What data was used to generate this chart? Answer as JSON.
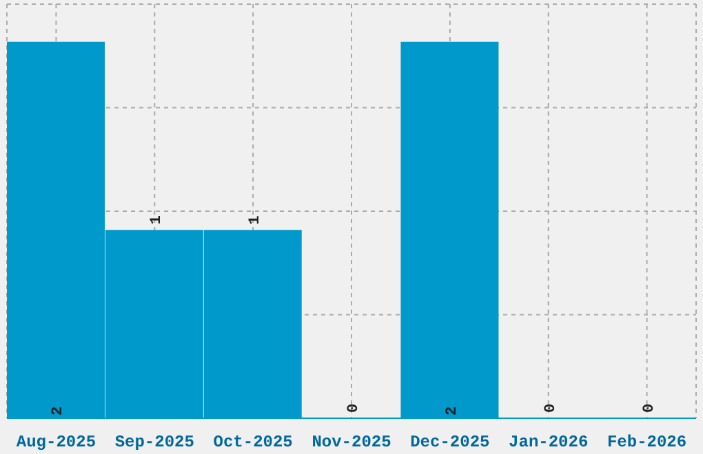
{
  "chart_data": {
    "type": "bar",
    "categories": [
      "Aug-2025",
      "Sep-2025",
      "Oct-2025",
      "Nov-2025",
      "Dec-2025",
      "Jan-2026",
      "Feb-2026"
    ],
    "values": [
      2,
      1,
      1,
      0,
      2,
      0,
      0
    ],
    "color": "#0099cc",
    "data_labels": true,
    "ylim": [
      0,
      2.2
    ],
    "yticks": [
      {
        "value": 0,
        "label": null
      },
      {
        "value": 0.55,
        "label": null
      },
      {
        "value": 1.1,
        "label": null
      },
      {
        "value": 1.65,
        "label": null
      },
      {
        "value": 2.2,
        "label": null
      }
    ],
    "tick_labels": "x",
    "grid": true
  }
}
